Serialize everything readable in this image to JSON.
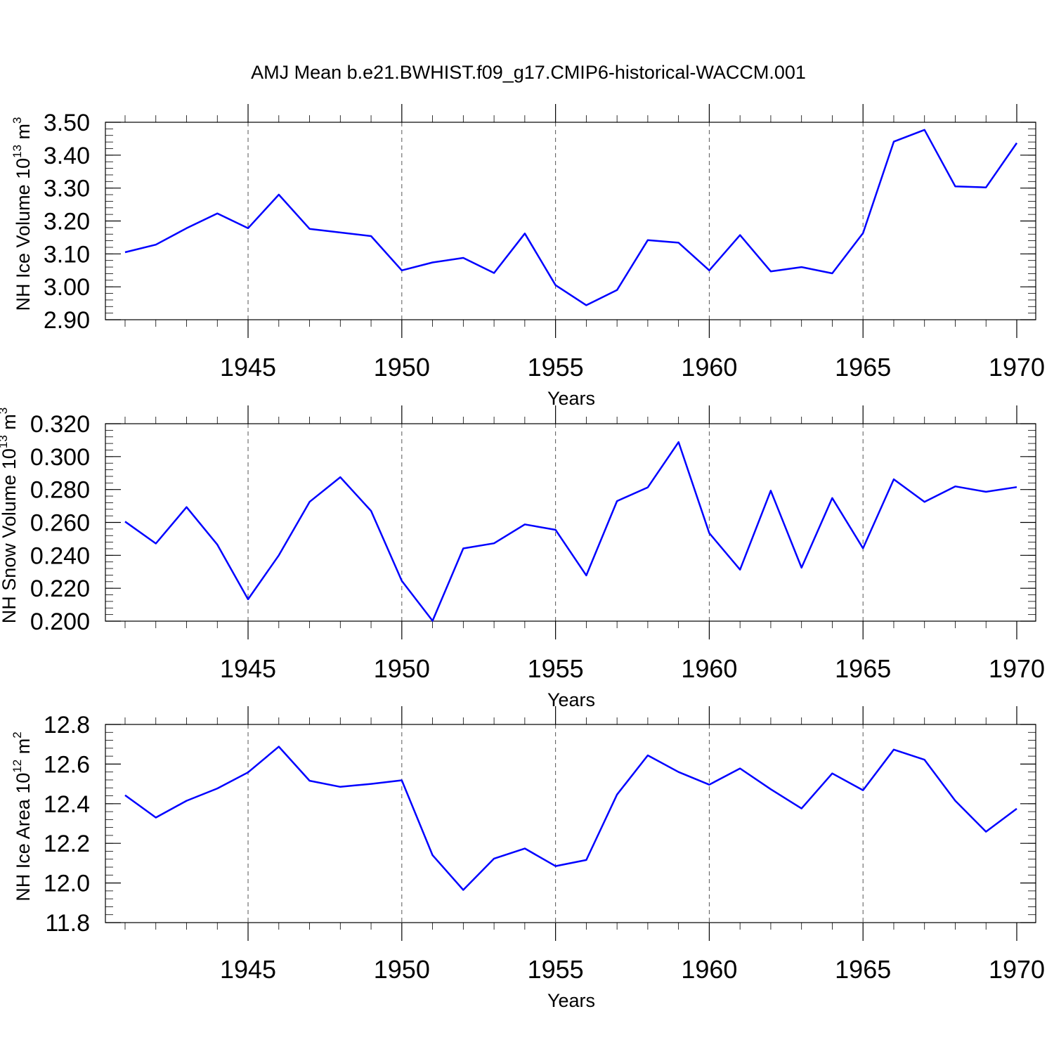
{
  "title": "AMJ Mean b.e21.BWHIST.f09_g17.CMIP6-historical-WACCM.001",
  "line_color": "#0000ff",
  "chart_data": [
    {
      "type": "line",
      "xlabel": "Years",
      "ylabel_main": "NH Ice Volume 10",
      "ylabel_exp": "13",
      "ylabel_unit": " m",
      "ylabel_unit_exp": "3",
      "xlim": [
        1941,
        1970
      ],
      "ylim": [
        2.9,
        3.5
      ],
      "xticks": [
        1945,
        1950,
        1955,
        1960,
        1965,
        1970
      ],
      "yticks": [
        2.9,
        3.0,
        3.1,
        3.2,
        3.3,
        3.4,
        3.5
      ],
      "ytick_labels": [
        "2.90",
        "3.00",
        "3.10",
        "3.20",
        "3.30",
        "3.40",
        "3.50"
      ],
      "y_minor_step": 0.02,
      "grid": "dashed vertical at major x ticks",
      "series": [
        {
          "x": [
            1941,
            1942,
            1943,
            1944,
            1945,
            1946,
            1947,
            1948,
            1949,
            1950,
            1951,
            1952,
            1953,
            1954,
            1955,
            1956,
            1957,
            1958,
            1959,
            1960,
            1961,
            1962,
            1963,
            1964,
            1965,
            1966,
            1967,
            1968,
            1969,
            1970
          ],
          "values": [
            3.105,
            3.128,
            3.178,
            3.223,
            3.178,
            3.28,
            3.176,
            3.165,
            3.154,
            3.05,
            3.074,
            3.088,
            3.042,
            3.162,
            3.005,
            2.944,
            2.99,
            3.142,
            3.134,
            3.05,
            3.157,
            3.047,
            3.06,
            3.041,
            3.163,
            3.441,
            3.477,
            3.305,
            3.302,
            3.437
          ]
        }
      ]
    },
    {
      "type": "line",
      "xlabel": "Years",
      "ylabel_main": "NH Snow Volume 10",
      "ylabel_exp": "13",
      "ylabel_unit": " m",
      "ylabel_unit_exp": "3",
      "xlim": [
        1941,
        1970
      ],
      "ylim": [
        0.2,
        0.32
      ],
      "xticks": [
        1945,
        1950,
        1955,
        1960,
        1965,
        1970
      ],
      "yticks": [
        0.2,
        0.22,
        0.24,
        0.26,
        0.28,
        0.3,
        0.32
      ],
      "ytick_labels": [
        "0.200",
        "0.220",
        "0.240",
        "0.260",
        "0.280",
        "0.300",
        "0.320"
      ],
      "y_minor_step": 0.004,
      "grid": "dashed vertical at major x ticks",
      "series": [
        {
          "x": [
            1941,
            1942,
            1943,
            1944,
            1945,
            1946,
            1947,
            1948,
            1949,
            1950,
            1951,
            1952,
            1953,
            1954,
            1955,
            1956,
            1957,
            1958,
            1959,
            1960,
            1961,
            1962,
            1963,
            1964,
            1965,
            1966,
            1967,
            1968,
            1969,
            1970
          ],
          "values": [
            0.2605,
            0.2472,
            0.2693,
            0.2465,
            0.2133,
            0.24,
            0.2725,
            0.2875,
            0.267,
            0.2245,
            0.2002,
            0.2442,
            0.2473,
            0.2588,
            0.2555,
            0.2278,
            0.273,
            0.2813,
            0.3088,
            0.2535,
            0.2313,
            0.2793,
            0.2325,
            0.2748,
            0.2443,
            0.2862,
            0.2725,
            0.2819,
            0.2786,
            0.2815
          ]
        }
      ]
    },
    {
      "type": "line",
      "xlabel": "Years",
      "ylabel_main": "NH Ice Area 10",
      "ylabel_exp": "12",
      "ylabel_unit": " m",
      "ylabel_unit_exp": "2",
      "xlim": [
        1941,
        1970
      ],
      "ylim": [
        11.8,
        12.8
      ],
      "xticks": [
        1945,
        1950,
        1955,
        1960,
        1965,
        1970
      ],
      "yticks": [
        11.8,
        12.0,
        12.2,
        12.4,
        12.6,
        12.8
      ],
      "ytick_labels": [
        "11.8",
        "12.0",
        "12.2",
        "12.4",
        "12.6",
        "12.8"
      ],
      "y_minor_step": 0.04,
      "grid": "dashed vertical at major x ticks",
      "series": [
        {
          "x": [
            1941,
            1942,
            1943,
            1944,
            1945,
            1946,
            1947,
            1948,
            1949,
            1950,
            1951,
            1952,
            1953,
            1954,
            1955,
            1956,
            1957,
            1958,
            1959,
            1960,
            1961,
            1962,
            1963,
            1964,
            1965,
            1966,
            1967,
            1968,
            1969,
            1970
          ],
          "values": [
            12.443,
            12.33,
            12.415,
            12.477,
            12.558,
            12.688,
            12.516,
            12.485,
            12.5,
            12.518,
            12.14,
            11.965,
            12.123,
            12.174,
            12.085,
            12.116,
            12.446,
            12.644,
            12.56,
            12.496,
            12.578,
            12.473,
            12.376,
            12.553,
            12.468,
            12.673,
            12.622,
            12.415,
            12.259,
            12.375
          ]
        }
      ]
    }
  ]
}
